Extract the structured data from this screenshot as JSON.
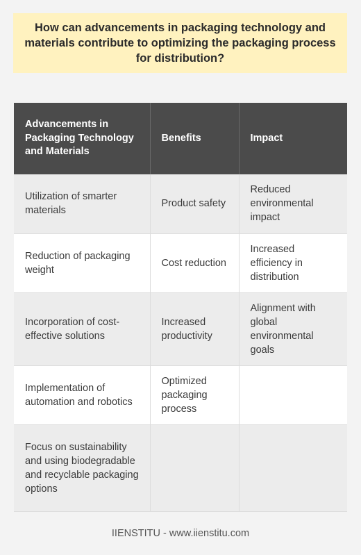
{
  "title": "How can advancements in packaging technology and materials contribute to optimizing the packaging process for distribution?",
  "table": {
    "headers": [
      "Advancements in Packaging Technology and Materials",
      "Benefits",
      "Impact"
    ],
    "rows": [
      [
        "Utilization of smarter materials",
        "Product safety",
        "Reduced environmental impact"
      ],
      [
        "Reduction of packaging weight",
        "Cost reduction",
        "Increased efficiency in distribution"
      ],
      [
        "Incorporation of cost-effective solutions",
        "Increased productivity",
        "Alignment with global environmental goals"
      ],
      [
        "Implementation of automation and robotics",
        "Optimized packaging process",
        ""
      ],
      [
        "Focus on sustainability and using biodegradable and recyclable packaging options",
        "",
        ""
      ]
    ]
  },
  "footer": "IIENSTITU - www.iienstitu.com"
}
